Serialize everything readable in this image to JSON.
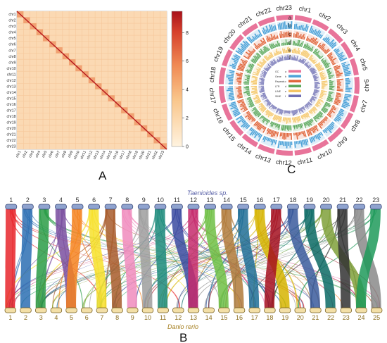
{
  "panels": {
    "a": "A",
    "b": "B",
    "c": "C"
  },
  "heatmap": {
    "chromosomes": [
      "chr1",
      "chr2",
      "chr3",
      "chr4",
      "chr5",
      "chr6",
      "chr7",
      "chr8",
      "chr9",
      "chr10",
      "chr11",
      "chr12",
      "chr13",
      "chr14",
      "chr15",
      "chr16",
      "chr17",
      "chr18",
      "chr19",
      "chr20",
      "chr21",
      "chr22",
      "chr23"
    ],
    "colorbar_ticks": [
      "0",
      "2",
      "4",
      "6",
      "8"
    ],
    "colorbar_range": [
      0,
      9.5
    ],
    "colors": {
      "low": "#fff3df",
      "mid": "#f6b071",
      "high": "#b2151b"
    }
  },
  "circos": {
    "chromosomes": [
      "chr1",
      "chr2",
      "chr3",
      "chr4",
      "chr5",
      "chr6",
      "chr7",
      "chr8",
      "chr9",
      "chr10",
      "chr11",
      "chr12",
      "chr13",
      "chr14",
      "chr15",
      "chr16",
      "chr17",
      "chr18",
      "chr19",
      "chr20",
      "chr21",
      "chr22",
      "chr23"
    ],
    "track_letters": [
      "a",
      "b",
      "c",
      "d",
      "e",
      "f"
    ],
    "legend": [
      {
        "label": "GC",
        "letter": "a"
      },
      {
        "label": "Gene",
        "letter": "b"
      },
      {
        "label": "Repeats",
        "letter": "c"
      },
      {
        "label": "LTR",
        "letter": "d"
      },
      {
        "label": "LINE",
        "letter": "e"
      },
      {
        "label": "SINE",
        "letter": "f"
      }
    ],
    "track_colors": [
      "#e8749a",
      "#4ea3d8",
      "#e0663c",
      "#59a75a",
      "#f4c565",
      "#6e6fb3"
    ]
  },
  "synteny": {
    "top_species": "Taenioides sp.",
    "bottom_species": "Danio rerio",
    "top_chromosomes": [
      "1",
      "2",
      "3",
      "4",
      "5",
      "6",
      "7",
      "8",
      "9",
      "10",
      "11",
      "12",
      "13",
      "14",
      "15",
      "16",
      "17",
      "18",
      "19",
      "20",
      "21",
      "22",
      "23"
    ],
    "bottom_chromosomes": [
      "1",
      "2",
      "3",
      "4",
      "5",
      "6",
      "7",
      "8",
      "9",
      "10",
      "11",
      "12",
      "13",
      "14",
      "15",
      "16",
      "17",
      "18",
      "19",
      "20",
      "21",
      "22",
      "23",
      "24",
      "25"
    ],
    "top_colors": [
      "#e8262b",
      "#2c6fb3",
      "#2a9c47",
      "#7a4fa0",
      "#f58220",
      "#f7e12a",
      "#a75a2a",
      "#f08bbd",
      "#9e9e9e",
      "#1b8a7a",
      "#3a4aa0",
      "#c52a6c",
      "#6fbf44",
      "#b07a3a",
      "#1f6d95",
      "#d6b400",
      "#a50f1e",
      "#3a5a9c",
      "#0a6a64",
      "#7fa03a",
      "#333333",
      "#8a8a8a",
      "#1f9a5a"
    ]
  }
}
